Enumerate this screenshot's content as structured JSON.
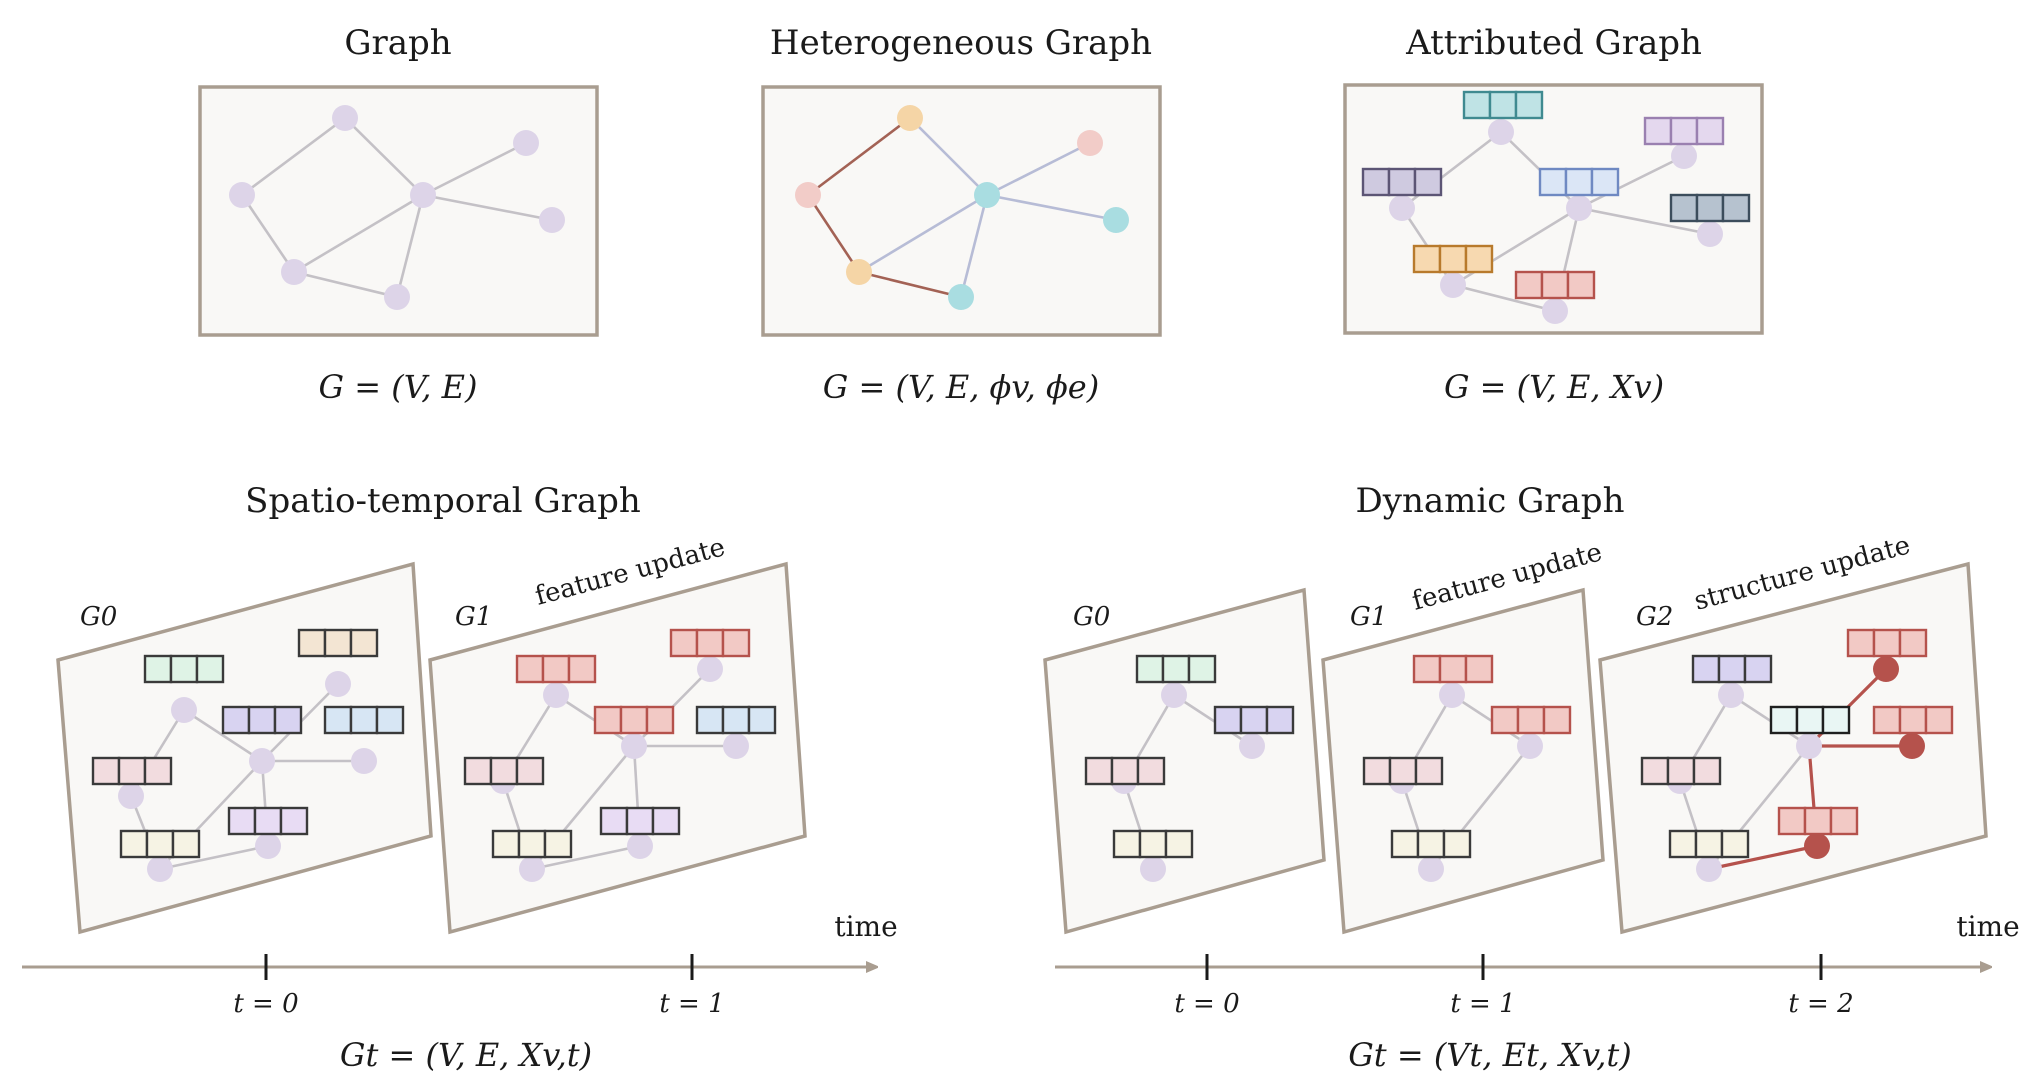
{
  "colors": {
    "frame": "#a99d90",
    "node": "#ddd4e8",
    "edge": "#c4c1c6",
    "update": "#b5524c"
  },
  "panels": {
    "graph": {
      "title": "Graph",
      "formula": "G = (V, E)"
    },
    "heterogeneous": {
      "title": "Heterogeneous Graph",
      "formula": "G = (V, E, ϕv, ϕe)"
    },
    "attributed": {
      "title": "Attributed Graph",
      "formula": "G = (V, E, Xv)"
    },
    "spatiotemporal": {
      "title": "Spatio-temporal Graph",
      "formula": "Gt = (V, E, Xv,t)",
      "snapshot_labels": [
        "G0",
        "G1"
      ],
      "annotations": [
        "feature update"
      ],
      "ticks": [
        "t = 0",
        "t = 1"
      ],
      "axis_label": "time"
    },
    "dynamic": {
      "title": "Dynamic Graph",
      "formula": "Gt = (Vt, Et, Xv,t)",
      "snapshot_labels": [
        "G0",
        "G1",
        "G2"
      ],
      "annotations": [
        "feature update",
        "structure update"
      ],
      "ticks": [
        "t = 0",
        "t = 1",
        "t = 2"
      ],
      "axis_label": "time"
    }
  }
}
